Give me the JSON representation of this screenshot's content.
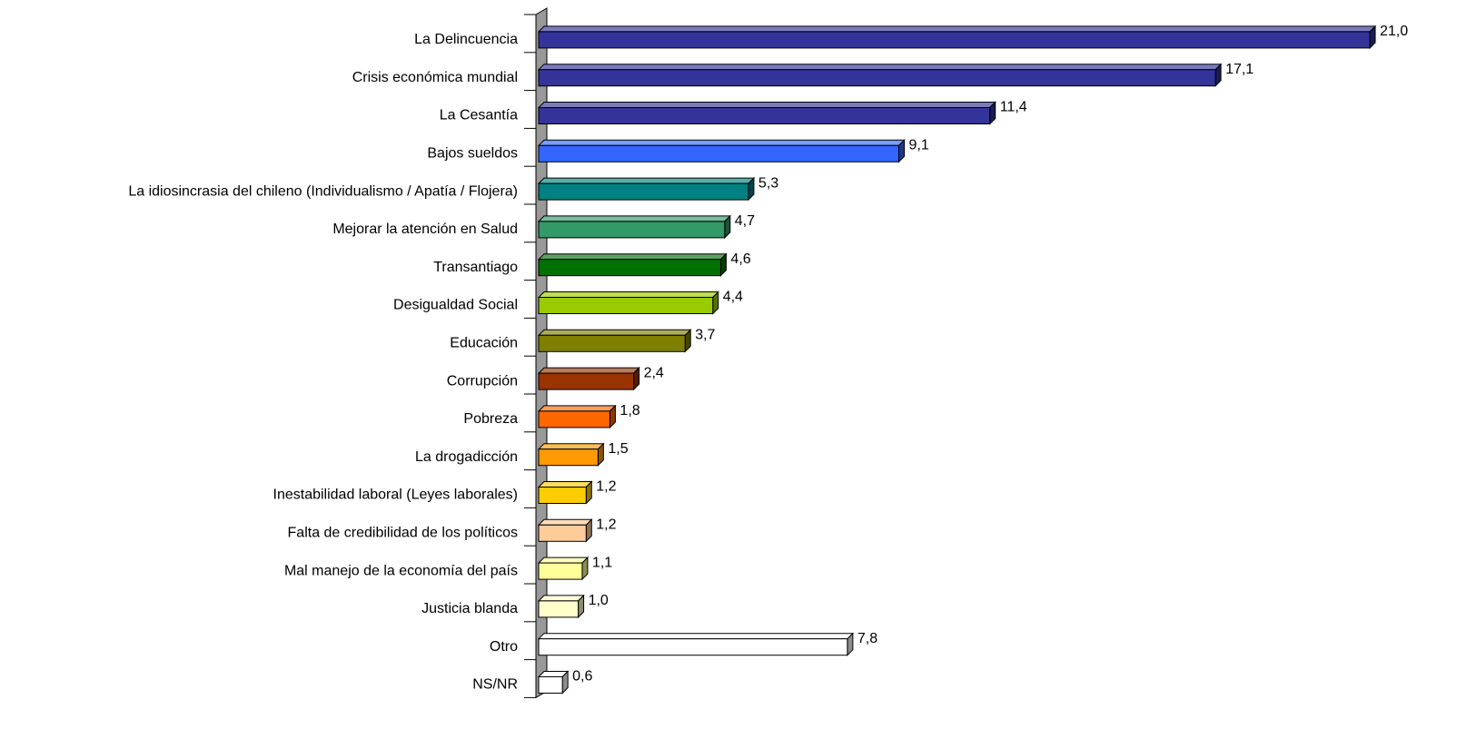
{
  "chart_data": {
    "type": "bar",
    "orientation": "horizontal",
    "categories": [
      "La Delincuencia",
      "Crisis económica mundial",
      "La Cesantía",
      "Bajos sueldos",
      "La idiosincrasia del chileno (Individualismo / Apatía / Flojera)",
      "Mejorar la atención en Salud",
      "Transantiago",
      "Desigualdad Social",
      "Educación",
      "Corrupción",
      "Pobreza",
      "La drogadicción",
      "Inestabilidad laboral (Leyes laborales)",
      "Falta de credibilidad de los políticos",
      "Mal manejo de la economía del país",
      "Justicia blanda",
      "Otro",
      "NS/NR"
    ],
    "values": [
      21.0,
      17.1,
      11.4,
      9.1,
      5.3,
      4.7,
      4.6,
      4.4,
      3.7,
      2.4,
      1.8,
      1.5,
      1.2,
      1.2,
      1.1,
      1.0,
      7.8,
      0.6
    ],
    "value_labels": [
      "21,0",
      "17,1",
      "11,4",
      "9,1",
      "5,3",
      "4,7",
      "4,6",
      "4,4",
      "3,7",
      "2,4",
      "1,8",
      "1,5",
      "1,2",
      "1,2",
      "1,1",
      "1,0",
      "7,8",
      "0,6"
    ],
    "colors": [
      "#333399",
      "#333399",
      "#333399",
      "#3366ff",
      "#008080",
      "#339966",
      "#007000",
      "#99cc00",
      "#808000",
      "#993300",
      "#ff6600",
      "#ff9900",
      "#ffcc00",
      "#ffcc99",
      "#ffff99",
      "#ffffcc",
      "#ffffff",
      "#ffffff"
    ]
  }
}
